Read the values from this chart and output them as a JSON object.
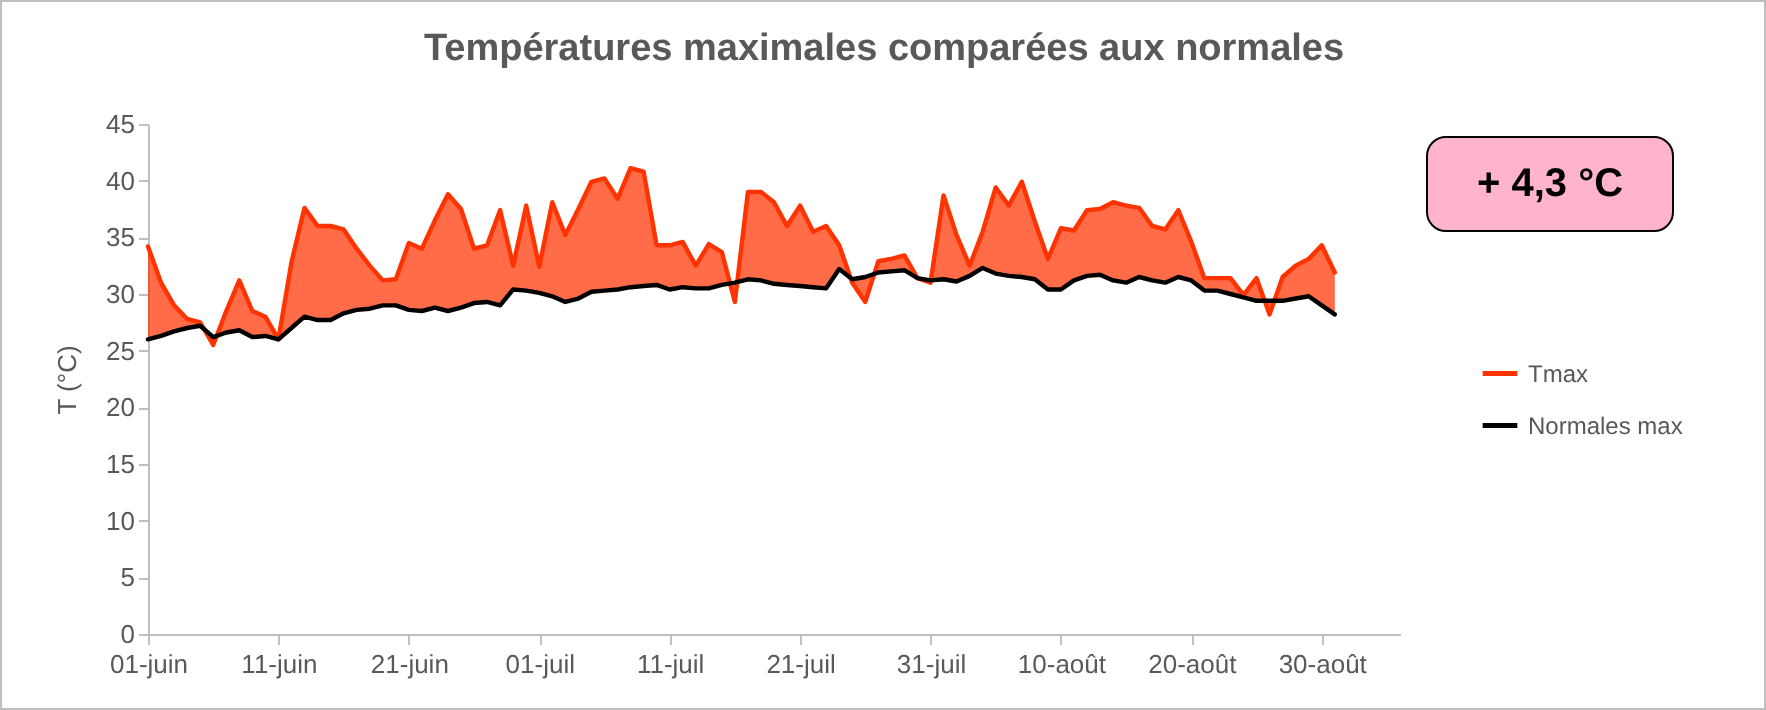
{
  "chart_data": {
    "type": "line",
    "title": "Températures maximales comparées aux normales",
    "ylabel": "T (°C)",
    "annotations": [
      "+ 4,3 °C"
    ],
    "x": [
      "--06-01",
      "--06-02",
      "--06-03",
      "--06-04",
      "--06-05",
      "--06-06",
      "--06-07",
      "--06-08",
      "--06-09",
      "--06-10",
      "--06-11",
      "--06-12",
      "--06-13",
      "--06-14",
      "--06-15",
      "--06-16",
      "--06-17",
      "--06-18",
      "--06-19",
      "--06-20",
      "--06-21",
      "--06-22",
      "--06-23",
      "--06-24",
      "--06-25",
      "--06-26",
      "--06-27",
      "--06-28",
      "--06-29",
      "--06-30",
      "--07-01",
      "--07-02",
      "--07-03",
      "--07-04",
      "--07-05",
      "--07-06",
      "--07-07",
      "--07-08",
      "--07-09",
      "--07-10",
      "--07-11",
      "--07-12",
      "--07-13",
      "--07-14",
      "--07-15",
      "--07-16",
      "--07-17",
      "--07-18",
      "--07-19",
      "--07-20",
      "--07-21",
      "--07-22",
      "--07-23",
      "--07-24",
      "--07-25",
      "--07-26",
      "--07-27",
      "--07-28",
      "--07-29",
      "--07-30",
      "--07-31",
      "--08-01",
      "--08-02",
      "--08-03",
      "--08-04",
      "--08-05",
      "--08-06",
      "--08-07",
      "--08-08",
      "--08-09",
      "--08-10",
      "--08-11",
      "--08-12",
      "--08-13",
      "--08-14",
      "--08-15",
      "--08-16",
      "--08-17",
      "--08-18",
      "--08-19",
      "--08-20",
      "--08-21",
      "--08-22",
      "--08-23",
      "--08-24",
      "--08-25",
      "--08-26",
      "--08-27",
      "--08-28",
      "--08-29",
      "--08-30",
      "--08-31"
    ],
    "series": [
      {
        "name": "Tmax",
        "color": "#ff3300",
        "values": [
          34.2,
          31,
          29,
          27.8,
          27.5,
          25.5,
          28.5,
          31.2,
          28.5,
          28,
          26,
          32.8,
          37.6,
          36,
          36,
          35.7,
          34,
          32.5,
          31.2,
          31.3,
          34.5,
          34,
          36.5,
          38.8,
          37.5,
          34,
          34.3,
          37.4,
          32.5,
          37.8,
          32.4,
          38.1,
          35.2,
          37.5,
          39.9,
          40.2,
          38.4,
          41.1,
          40.8,
          34.3,
          34.3,
          34.6,
          32.5,
          34.4,
          33.7,
          29.3,
          39,
          39,
          38.1,
          36,
          37.8,
          35.5,
          36,
          34.3,
          31,
          29.3,
          32.9,
          33.1,
          33.4,
          31.4,
          31,
          38.7,
          35.2,
          32.5,
          35.5,
          39.4,
          37.8,
          39.9,
          36.4,
          33.1,
          35.8,
          35.6,
          37.4,
          37.5,
          38.1,
          37.8,
          37.6,
          36,
          35.7,
          37.4,
          34.6,
          31.4,
          31.4,
          31.4,
          29.9,
          31.4,
          28.2,
          31.5,
          32.5,
          33.1,
          34.3,
          31.9
        ],
        "lower": [
          26,
          26.3,
          26.7,
          27,
          27.2,
          26.2,
          26.6,
          26.8,
          26.2,
          26.3,
          26,
          27,
          28,
          27.7,
          27.7,
          28.3,
          28.6,
          28.7,
          29,
          29,
          28.6,
          28.5,
          28.8,
          28.5,
          28.8,
          29.2,
          29.3,
          29,
          30.4,
          30.3,
          30.1,
          29.8,
          29.3,
          29.6,
          30.2,
          30.3,
          30.4,
          30.6,
          30.7,
          30.8,
          30.4,
          30.6,
          30.5,
          30.5,
          30.8,
          31,
          31.3,
          31.2,
          30.9,
          30.8,
          30.7,
          30.6,
          30.5,
          32.2,
          31.3,
          31.5,
          31.9,
          32,
          32.1,
          31.4,
          31.2,
          31.3,
          31.1,
          31.6,
          32.3,
          31.8,
          31.6,
          31.5,
          31.3,
          30.4,
          30.4,
          31.2,
          31.6,
          31.7,
          31.2,
          31,
          31.5,
          31.2,
          31,
          31.5,
          31.2,
          30.3,
          30.3,
          30,
          29.7,
          29.4,
          29.4,
          29.4,
          29.6,
          29.8,
          29,
          28.2
        ],
        "upper": [
          34.2,
          31,
          29,
          27.8,
          27.5,
          25.5,
          28.5,
          31.2,
          28.5,
          28,
          26,
          32.8,
          37.6,
          36,
          36,
          35.7,
          34,
          32.5,
          31.2,
          31.3,
          34.5,
          34,
          36.5,
          38.8,
          37.5,
          34,
          34.3,
          37.4,
          32.5,
          37.8,
          32.4,
          38.1,
          35.2,
          37.5,
          39.9,
          40.2,
          38.4,
          41.1,
          40.8,
          34.3,
          34.3,
          34.6,
          32.5,
          34.4,
          33.7,
          29.3,
          39,
          39,
          38.1,
          36,
          37.8,
          35.5,
          36,
          34.3,
          31,
          29.3,
          32.9,
          33.1,
          33.4,
          31.4,
          31,
          38.7,
          35.2,
          32.5,
          35.5,
          39.4,
          37.8,
          39.9,
          36.4,
          33.1,
          35.8,
          35.6,
          37.4,
          37.5,
          38.1,
          37.8,
          37.6,
          36,
          35.7,
          37.4,
          34.6,
          31.4,
          31.4,
          31.4,
          29.9,
          31.4,
          28.2,
          31.5,
          32.5,
          33.1,
          34.3,
          31.9
        ]
      },
      {
        "name": "Normales max",
        "color": "#000000",
        "values": [
          26,
          26.3,
          26.7,
          27,
          27.2,
          26.2,
          26.6,
          26.8,
          26.2,
          26.3,
          26,
          27,
          28,
          27.7,
          27.7,
          28.3,
          28.6,
          28.7,
          29,
          29,
          28.6,
          28.5,
          28.8,
          28.5,
          28.8,
          29.2,
          29.3,
          29,
          30.4,
          30.3,
          30.1,
          29.8,
          29.3,
          29.6,
          30.2,
          30.3,
          30.4,
          30.6,
          30.7,
          30.8,
          30.4,
          30.6,
          30.5,
          30.5,
          30.8,
          31,
          31.3,
          31.2,
          30.9,
          30.8,
          30.7,
          30.6,
          30.5,
          32.2,
          31.3,
          31.5,
          31.9,
          32,
          32.1,
          31.4,
          31.2,
          31.3,
          31.1,
          31.6,
          32.3,
          31.8,
          31.6,
          31.5,
          31.3,
          30.4,
          30.4,
          31.2,
          31.6,
          31.7,
          31.2,
          31,
          31.5,
          31.2,
          31,
          31.5,
          31.2,
          30.3,
          30.3,
          30,
          29.7,
          29.4,
          29.4,
          29.4,
          29.6,
          29.8,
          29,
          28.2
        ]
      }
    ],
    "xlim": [
      "--06-01",
      "--09-05"
    ],
    "xticks": [
      {
        "value": "--06-01",
        "label": "01-juin"
      },
      {
        "value": "--06-11",
        "label": "11-juin"
      },
      {
        "value": "--06-21",
        "label": "21-juin"
      },
      {
        "value": "--07-01",
        "label": "01-juil"
      },
      {
        "value": "--07-11",
        "label": "11-juil"
      },
      {
        "value": "--07-21",
        "label": "21-juil"
      },
      {
        "value": "--07-31",
        "label": "31-juil"
      },
      {
        "value": "--08-10",
        "label": "10-août"
      },
      {
        "value": "--08-20",
        "label": "20-août"
      },
      {
        "value": "--08-30",
        "label": "30-août"
      }
    ],
    "ylim": [
      0,
      45
    ],
    "yticks": [
      0,
      5,
      10,
      15,
      20,
      25,
      30,
      35,
      40,
      45
    ],
    "legend": "right",
    "grid": false,
    "line_style": "solid"
  }
}
